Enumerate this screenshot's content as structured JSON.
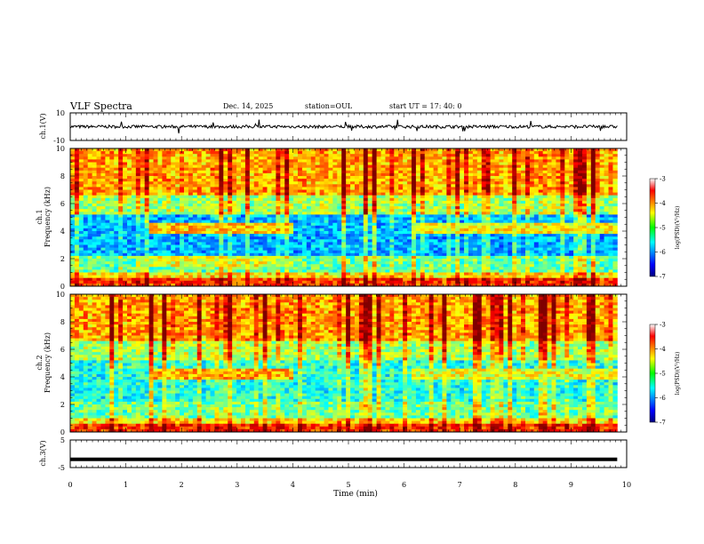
{
  "header": {
    "title": "VLF Spectra",
    "date": "Dec. 14, 2025",
    "station": "station=OUL",
    "start": "start  UT  =   17: 40: 0"
  },
  "colors": {
    "spectrum_low": "#000080",
    "spectrum_mid": "#00ff00",
    "spectrum_high": "#ff0000",
    "trace": "#000000"
  },
  "chart_data": [
    {
      "name": "ch1-voltage",
      "type": "line",
      "ylabel": "ch.1(V)",
      "ylim": [
        -10,
        10
      ],
      "yticks": [
        "10",
        "-10"
      ],
      "xlim": [
        0,
        10
      ],
      "baseline": 0
    },
    {
      "name": "ch1-spectrogram",
      "type": "heatmap",
      "ylabel": "ch.1 Frequency (kHz)",
      "ylim": [
        0,
        10
      ],
      "yticks": [
        "0",
        "2",
        "4",
        "6",
        "8",
        "10"
      ],
      "xlim": [
        0,
        10
      ],
      "data_end_min": 9.83,
      "colorbar": {
        "label": "log(PSD)(V²/Hz)",
        "range": [
          -7,
          -3
        ],
        "ticks": [
          "-3",
          "-4",
          "-5",
          "-6",
          "-7"
        ]
      },
      "features": [
        {
          "band_khz": [
            3.8,
            4.5
          ],
          "t_start": 1.45,
          "t_end": 4.0,
          "log_psd": -4.3
        },
        {
          "band_khz": [
            3.8,
            4.5
          ],
          "t_start": 6.1,
          "t_end": 9.83,
          "log_psd": -4.5
        },
        {
          "band_khz": [
            1.5,
            2.2
          ],
          "t_start": 1.45,
          "t_end": 4.0,
          "log_psd": -4.6
        }
      ]
    },
    {
      "name": "ch2-spectrogram",
      "type": "heatmap",
      "ylabel": "ch.2 Frequency (kHz)",
      "ylim": [
        0,
        10
      ],
      "yticks": [
        "0",
        "2",
        "4",
        "6",
        "8",
        "10"
      ],
      "xlim": [
        0,
        10
      ],
      "data_end_min": 9.83,
      "colorbar": {
        "label": "log(PSD)(V²/Hz)",
        "range": [
          -7,
          -3
        ],
        "ticks": [
          "-3",
          "-4",
          "-5",
          "-6",
          "-7"
        ]
      },
      "features": [
        {
          "band_khz": [
            3.8,
            4.5
          ],
          "t_start": 1.45,
          "t_end": 4.0,
          "log_psd": -4.2
        },
        {
          "band_khz": [
            3.8,
            4.5
          ],
          "t_start": 6.1,
          "t_end": 9.83,
          "log_psd": -4.6
        }
      ]
    },
    {
      "name": "ch3-voltage",
      "type": "line",
      "ylabel": "ch.3(V)",
      "ylim": [
        -5,
        5
      ],
      "yticks": [
        "5",
        "-5"
      ],
      "xlim": [
        0,
        10
      ],
      "baseline": -2,
      "xlabel": "Time (min)",
      "xticks": [
        "0",
        "1",
        "2",
        "3",
        "4",
        "5",
        "6",
        "7",
        "8",
        "9",
        "10"
      ]
    }
  ]
}
